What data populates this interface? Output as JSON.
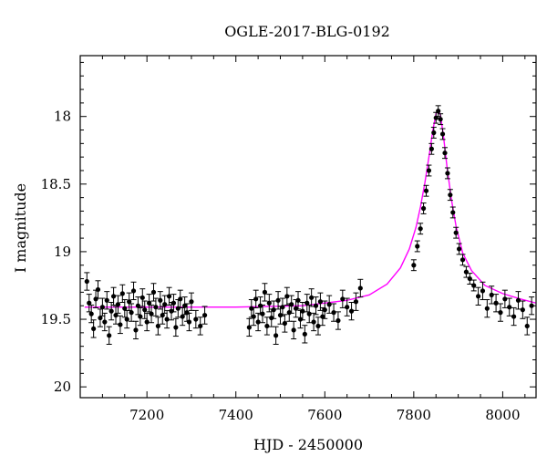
{
  "chart_data": {
    "type": "scatter",
    "title": "OGLE-2017-BLG-0192",
    "xlabel": "HJD - 2450000",
    "ylabel": "I magnitude",
    "xlim": [
      7050,
      8075
    ],
    "ylim": [
      20.08,
      17.55
    ],
    "y_inverted": true,
    "xticks": [
      7200,
      7400,
      7600,
      7800,
      8000
    ],
    "yticks": [
      18,
      18.5,
      19,
      19.5,
      20
    ],
    "ytick_labels": [
      "18",
      "18.5",
      "19",
      "19.5",
      "20"
    ],
    "grid": false,
    "colors": {
      "points": "#000000",
      "model": "#ff00ff",
      "frame": "#000000"
    },
    "model": {
      "name": "",
      "color": "#ff00ff",
      "x": [
        7060,
        7200,
        7400,
        7550,
        7650,
        7700,
        7740,
        7770,
        7790,
        7805,
        7815,
        7825,
        7835,
        7843,
        7850,
        7855,
        7860,
        7867,
        7875,
        7885,
        7895,
        7910,
        7930,
        7960,
        8000,
        8040,
        8075
      ],
      "y": [
        19.41,
        19.41,
        19.41,
        19.4,
        19.36,
        19.32,
        19.24,
        19.12,
        18.98,
        18.82,
        18.67,
        18.49,
        18.28,
        18.1,
        17.98,
        17.95,
        17.99,
        18.15,
        18.38,
        18.62,
        18.81,
        19.01,
        19.14,
        19.25,
        19.31,
        19.35,
        19.38
      ]
    },
    "series": [
      {
        "name": "",
        "color": "#000000",
        "x": [
          7065,
          7070,
          7075,
          7080,
          7085,
          7090,
          7095,
          7100,
          7105,
          7110,
          7115,
          7120,
          7125,
          7130,
          7135,
          7140,
          7145,
          7150,
          7155,
          7160,
          7165,
          7170,
          7175,
          7180,
          7185,
          7190,
          7195,
          7200,
          7205,
          7210,
          7215,
          7220,
          7225,
          7230,
          7235,
          7240,
          7245,
          7250,
          7255,
          7260,
          7265,
          7270,
          7275,
          7280,
          7285,
          7290,
          7295,
          7300,
          7310,
          7320,
          7330,
          7430,
          7435,
          7440,
          7445,
          7450,
          7455,
          7460,
          7465,
          7470,
          7475,
          7480,
          7485,
          7490,
          7495,
          7500,
          7505,
          7510,
          7515,
          7520,
          7525,
          7530,
          7535,
          7540,
          7545,
          7550,
          7555,
          7560,
          7565,
          7570,
          7575,
          7580,
          7585,
          7590,
          7595,
          7600,
          7610,
          7620,
          7630,
          7640,
          7650,
          7660,
          7670,
          7680,
          7800,
          7808,
          7815,
          7822,
          7828,
          7834,
          7840,
          7845,
          7850,
          7855,
          7860,
          7865,
          7870,
          7876,
          7882,
          7888,
          7895,
          7902,
          7910,
          7918,
          7926,
          7935,
          7945,
          7955,
          7965,
          7975,
          7985,
          7995,
          8005,
          8015,
          8025,
          8035,
          8045,
          8055,
          8065
        ],
        "y": [
          19.22,
          19.38,
          19.46,
          19.57,
          19.35,
          19.28,
          19.49,
          19.41,
          19.52,
          19.36,
          19.62,
          19.44,
          19.33,
          19.47,
          19.39,
          19.54,
          19.31,
          19.42,
          19.5,
          19.37,
          19.45,
          19.29,
          19.58,
          19.4,
          19.48,
          19.34,
          19.43,
          19.52,
          19.38,
          19.46,
          19.3,
          19.41,
          19.55,
          19.36,
          19.47,
          19.39,
          19.5,
          19.33,
          19.44,
          19.38,
          19.56,
          19.42,
          19.35,
          19.48,
          19.4,
          19.45,
          19.52,
          19.37,
          19.5,
          19.55,
          19.47,
          19.56,
          19.42,
          19.48,
          19.35,
          19.52,
          19.4,
          19.46,
          19.3,
          19.55,
          19.38,
          19.49,
          19.43,
          19.62,
          19.36,
          19.47,
          19.41,
          19.53,
          19.33,
          19.45,
          19.39,
          19.58,
          19.42,
          19.36,
          19.5,
          19.44,
          19.61,
          19.38,
          19.46,
          19.34,
          19.52,
          19.4,
          19.55,
          19.37,
          19.48,
          19.43,
          19.39,
          19.45,
          19.51,
          19.35,
          19.41,
          19.44,
          19.37,
          19.27,
          19.1,
          18.96,
          18.83,
          18.68,
          18.55,
          18.4,
          18.24,
          18.12,
          18.01,
          17.96,
          18.02,
          18.13,
          18.27,
          18.42,
          18.58,
          18.71,
          18.86,
          18.98,
          19.06,
          19.15,
          19.2,
          19.25,
          19.33,
          19.29,
          19.42,
          19.32,
          19.38,
          19.45,
          19.35,
          19.41,
          19.48,
          19.36,
          19.43,
          19.55,
          19.4
        ]
      }
    ]
  }
}
